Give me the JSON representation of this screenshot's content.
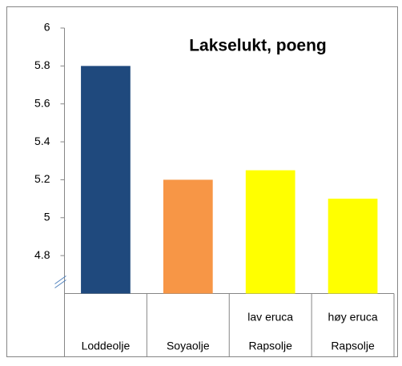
{
  "chart_data": {
    "type": "bar",
    "title": "Lakselukt, poeng",
    "categories": [
      "Loddeolje",
      "Soyaolje",
      "Rapsolje",
      "Rapsolje"
    ],
    "subcategories": [
      null,
      null,
      "lav eruca",
      "høy eruca"
    ],
    "values": [
      5.8,
      5.2,
      5.25,
      5.1
    ],
    "colors": [
      "#1f497d",
      "#f79646",
      "#ffff00",
      "#ffff00"
    ],
    "ylim": [
      4.6,
      6
    ],
    "yticks": [
      4.8,
      5,
      5.2,
      5.4,
      5.6,
      5.8,
      6
    ],
    "axis_break": true,
    "grid": false
  }
}
